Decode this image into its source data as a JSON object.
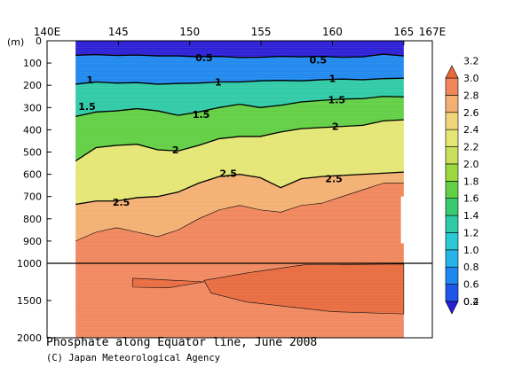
{
  "chart_data": {
    "type": "heatmap",
    "title": "Phosphate along Equator line, June 2008",
    "credit": "(C) Japan Meteorological Agency",
    "y_unit": "(m)",
    "x_ticks": [
      {
        "value": 140,
        "label": "140E"
      },
      {
        "value": 145,
        "label": "145"
      },
      {
        "value": 150,
        "label": "150"
      },
      {
        "value": 155,
        "label": "155"
      },
      {
        "value": 160,
        "label": "160"
      },
      {
        "value": 165,
        "label": "165"
      },
      {
        "value": 167,
        "label": "167E"
      }
    ],
    "xlim": [
      140,
      167
    ],
    "upper_y_ticks": [
      {
        "value": 0,
        "label": "0"
      },
      {
        "value": 100,
        "label": "100"
      },
      {
        "value": 200,
        "label": "200"
      },
      {
        "value": 300,
        "label": "300"
      },
      {
        "value": 400,
        "label": "400"
      },
      {
        "value": 500,
        "label": "500"
      },
      {
        "value": 600,
        "label": "600"
      },
      {
        "value": 700,
        "label": "700"
      },
      {
        "value": 800,
        "label": "800"
      },
      {
        "value": 900,
        "label": "900"
      },
      {
        "value": 1000,
        "label": "1000"
      }
    ],
    "lower_y_ticks": [
      {
        "value": 1500,
        "label": "1500"
      },
      {
        "value": 2000,
        "label": "2000"
      }
    ],
    "data_x_range": [
      142,
      165
    ],
    "missing_region": {
      "x": [
        164.8,
        167
      ],
      "depth": [
        700,
        910
      ]
    },
    "colorbar": {
      "levels": [
        "0.2",
        "0.4",
        "0.6",
        "0.8",
        "1.0",
        "1.2",
        "1.4",
        "1.6",
        "1.8",
        "2.0",
        "2.2",
        "2.4",
        "2.6",
        "2.8",
        "3.0",
        "3.2"
      ],
      "colors": [
        "#2b1fd6",
        "#1f55e8",
        "#1f88ee",
        "#25b4ea",
        "#2ac9d3",
        "#2fcaa6",
        "#39c970",
        "#62cf44",
        "#9bd83e",
        "#c9e05c",
        "#e4e674",
        "#f0d47a",
        "#f4b072",
        "#f0865c",
        "#e8693c"
      ]
    },
    "contour_labels": [
      {
        "text": "0.5",
        "x": 151,
        "depth": 75
      },
      {
        "text": "0.5",
        "x": 159,
        "depth": 85
      },
      {
        "text": "1",
        "x": 143,
        "depth": 175
      },
      {
        "text": "1",
        "x": 152,
        "depth": 185
      },
      {
        "text": "1",
        "x": 160,
        "depth": 170
      },
      {
        "text": "1.5",
        "x": 142.8,
        "depth": 295
      },
      {
        "text": "1.5",
        "x": 150.8,
        "depth": 330
      },
      {
        "text": "1.5",
        "x": 160.3,
        "depth": 265
      },
      {
        "text": "2",
        "x": 149,
        "depth": 490
      },
      {
        "text": "2",
        "x": 160.2,
        "depth": 385
      },
      {
        "text": "2.5",
        "x": 152.7,
        "depth": 595
      },
      {
        "text": "2.5",
        "x": 160.1,
        "depth": 620
      },
      {
        "text": "2.5",
        "x": 145.2,
        "depth": 725
      }
    ],
    "contours": [
      {
        "level": 0.5,
        "depth": [
          65,
          62,
          66,
          64,
          68,
          68,
          72,
          70,
          75,
          74,
          70,
          72,
          70,
          74,
          72,
          60,
          68
        ]
      },
      {
        "level": 1.0,
        "depth": [
          195,
          185,
          190,
          188,
          195,
          192,
          190,
          185,
          185,
          180,
          178,
          180,
          175,
          172,
          175,
          170,
          168
        ]
      },
      {
        "level": 1.5,
        "depth": [
          340,
          320,
          315,
          305,
          315,
          335,
          320,
          300,
          285,
          300,
          290,
          275,
          268,
          262,
          260,
          250,
          252
        ]
      },
      {
        "level": 2.0,
        "depth": [
          540,
          480,
          470,
          465,
          490,
          495,
          470,
          440,
          430,
          430,
          410,
          395,
          390,
          385,
          380,
          360,
          355
        ]
      },
      {
        "level": 2.5,
        "depth": [
          735,
          720,
          720,
          705,
          700,
          680,
          640,
          610,
          600,
          615,
          660,
          620,
          610,
          605,
          600,
          595,
          590
        ]
      },
      {
        "level": 2.8,
        "depth": [
          900,
          860,
          840,
          860,
          880,
          850,
          800,
          760,
          740,
          760,
          770,
          740,
          730,
          700,
          670,
          640,
          640
        ]
      }
    ]
  }
}
